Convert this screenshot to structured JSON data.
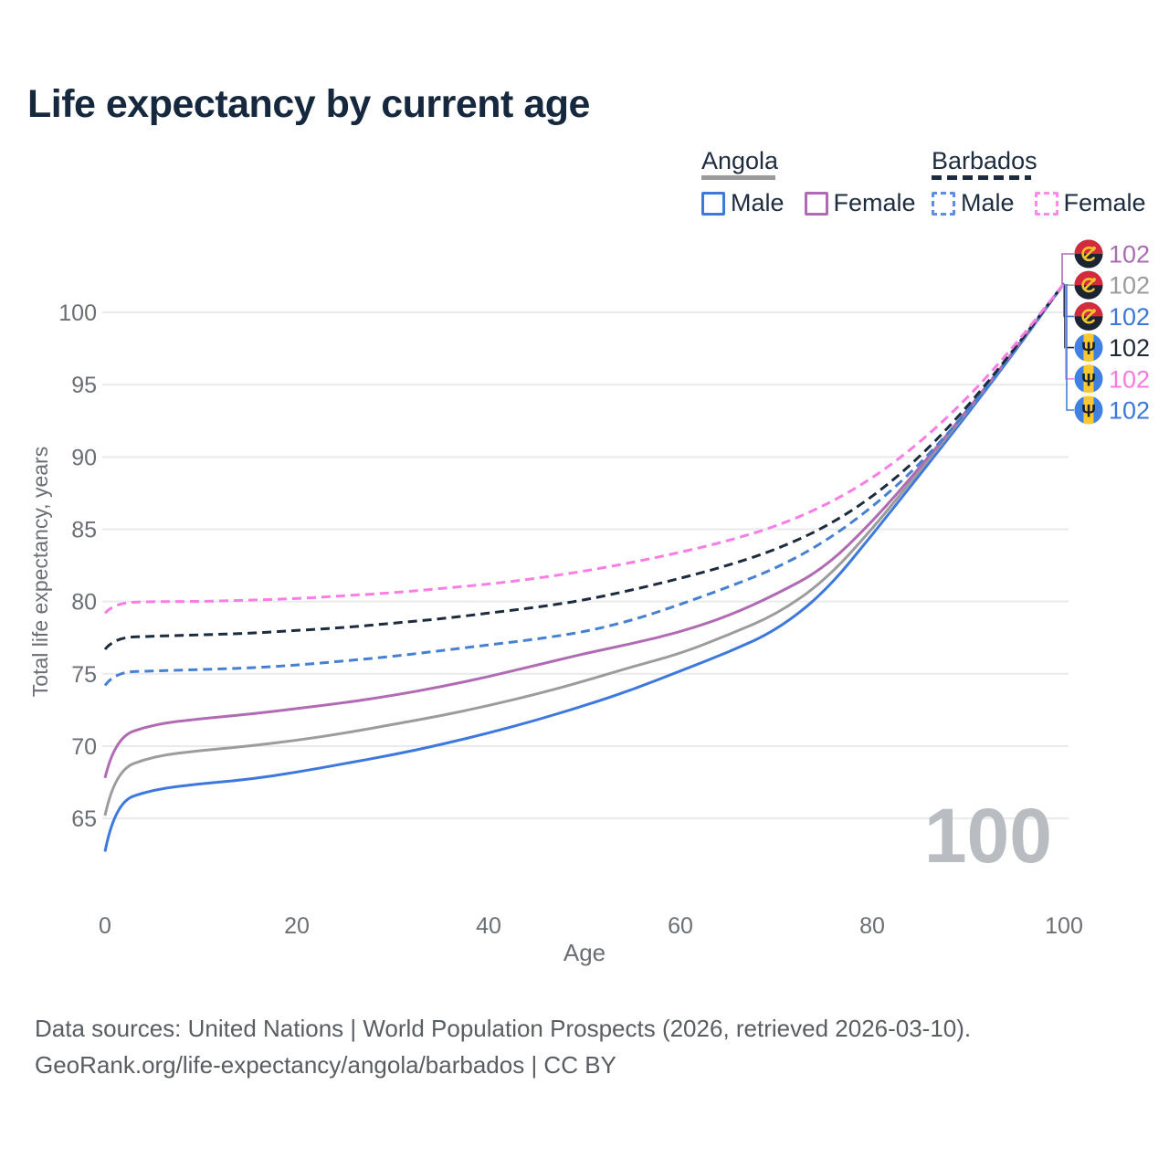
{
  "title": "Life expectancy by current age",
  "legend": {
    "groups": [
      {
        "id": "angola",
        "title": "Angola",
        "underline_style": "solid",
        "underline_color": "#9a9a9a",
        "items": [
          {
            "id": "male",
            "label": "Male",
            "color": "#3d78dc",
            "dash": "solid"
          },
          {
            "id": "female",
            "label": "Female",
            "color": "#b16bb4",
            "dash": "solid"
          }
        ]
      },
      {
        "id": "barbados",
        "title": "Barbados",
        "underline_style": "dashed",
        "underline_color": "#1c2b3e",
        "items": [
          {
            "id": "male",
            "label": "Male",
            "color": "#5a8ede",
            "dash": "dashed"
          },
          {
            "id": "female",
            "label": "Female",
            "color": "#fc8ae8",
            "dash": "dashed"
          }
        ]
      }
    ]
  },
  "chart_data": {
    "type": "line",
    "title": "Life expectancy by current age",
    "xlabel": "Age",
    "ylabel": "Total life expectancy, years",
    "x_ticks": [
      0,
      20,
      40,
      60,
      80,
      100
    ],
    "y_ticks": [
      65,
      70,
      75,
      80,
      85,
      90,
      95,
      100
    ],
    "xlim": [
      0,
      100
    ],
    "ylim": [
      61,
      103
    ],
    "grid": "horizontal",
    "legend_position": "top-right",
    "watermark_age": "100",
    "ages": [
      0,
      1,
      5,
      10,
      15,
      20,
      25,
      30,
      35,
      40,
      45,
      50,
      55,
      60,
      65,
      70,
      75,
      80,
      85,
      90,
      95,
      100
    ],
    "series": [
      {
        "key": "angola_male",
        "name": "Angola Male",
        "country": "Angola",
        "sex": "Male",
        "color": "#3d78dc",
        "dash": "solid",
        "flag": "angola",
        "values": [
          62.7,
          66.1,
          67.0,
          67.4,
          67.7,
          68.2,
          68.8,
          69.4,
          70.1,
          70.9,
          71.8,
          72.8,
          73.9,
          75.2,
          76.5,
          78.0,
          80.6,
          84.6,
          88.8,
          93.0,
          97.4,
          102
        ]
      },
      {
        "key": "angola_both",
        "name": "Angola Both sexes",
        "country": "Angola",
        "sex": "Both",
        "color": "#9c9c9c",
        "dash": "solid",
        "flag": "angola",
        "values": [
          65.2,
          68.3,
          69.3,
          69.7,
          70.0,
          70.4,
          70.9,
          71.5,
          72.1,
          72.8,
          73.6,
          74.5,
          75.5,
          76.4,
          77.7,
          79.1,
          81.4,
          85.0,
          89.1,
          93.2,
          97.5,
          102
        ]
      },
      {
        "key": "angola_female",
        "name": "Angola Female",
        "country": "Angola",
        "sex": "Female",
        "color": "#b16bb4",
        "dash": "solid",
        "flag": "angola",
        "values": [
          67.8,
          70.6,
          71.5,
          71.9,
          72.2,
          72.6,
          73.0,
          73.5,
          74.1,
          74.8,
          75.6,
          76.4,
          77.1,
          77.9,
          79.0,
          80.5,
          82.3,
          85.5,
          89.3,
          93.3,
          97.5,
          102
        ]
      },
      {
        "key": "barbados_male",
        "name": "Barbados Male",
        "country": "Barbados",
        "sex": "Male",
        "color": "#4680d2",
        "dash": "dashed",
        "flag": "barbados",
        "values": [
          74.2,
          75.1,
          75.2,
          75.3,
          75.4,
          75.6,
          75.9,
          76.2,
          76.6,
          77.0,
          77.4,
          77.9,
          78.7,
          79.8,
          81.0,
          82.3,
          84.1,
          86.5,
          89.5,
          93.2,
          97.4,
          102
        ]
      },
      {
        "key": "barbados_both",
        "name": "Barbados Both sexes",
        "country": "Barbados",
        "sex": "Both",
        "color": "#1c2b3e",
        "dash": "dashed",
        "flag": "barbados",
        "values": [
          76.7,
          77.5,
          77.6,
          77.7,
          77.8,
          78.0,
          78.2,
          78.5,
          78.8,
          79.2,
          79.6,
          80.1,
          80.8,
          81.6,
          82.5,
          83.6,
          85.1,
          87.2,
          90.0,
          93.5,
          97.6,
          102
        ]
      },
      {
        "key": "barbados_female",
        "name": "Barbados Female",
        "country": "Barbados",
        "sex": "Female",
        "color": "#fa7de5",
        "dash": "dashed",
        "flag": "barbados",
        "values": [
          79.2,
          79.9,
          80.0,
          80.0,
          80.1,
          80.2,
          80.4,
          80.6,
          80.9,
          81.2,
          81.6,
          82.1,
          82.7,
          83.4,
          84.2,
          85.2,
          86.6,
          88.5,
          91.0,
          94.1,
          97.8,
          102
        ]
      }
    ],
    "end_labels": [
      {
        "series": "angola_female",
        "text": "102",
        "color": "#a86db0"
      },
      {
        "series": "angola_both",
        "text": "102",
        "color": "#9b9b9b"
      },
      {
        "series": "angola_male",
        "text": "102",
        "color": "#3c77d9"
      },
      {
        "series": "barbados_both",
        "text": "102",
        "color": "#1f2937"
      },
      {
        "series": "barbados_female",
        "text": "102",
        "color": "#f87ae0"
      },
      {
        "series": "barbados_male",
        "text": "102",
        "color": "#3c77d9"
      }
    ],
    "flag_colors": {
      "angola": {
        "red": "#d32b3d",
        "dark": "#1a2433",
        "yellow": "#f2c42c"
      },
      "barbados": {
        "blue": "#3f80e0",
        "yellow": "#ffc72e",
        "trident": "#16202e"
      }
    }
  },
  "footer": {
    "line1": "Data sources: United Nations | World Population Prospects (2026, retrieved 2026-03-10).",
    "line2": "GeoRank.org/life-expectancy/angola/barbados | CC BY"
  }
}
